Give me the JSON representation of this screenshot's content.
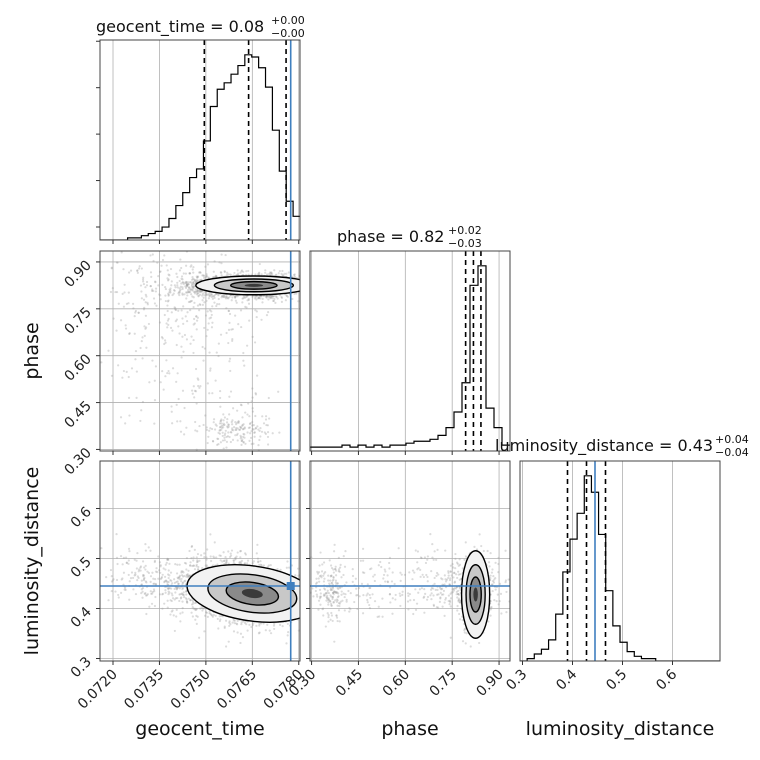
{
  "chart_data": {
    "type": "corner",
    "parameters": [
      "geocent_time",
      "phase",
      "luminosity_distance"
    ],
    "colors": {
      "truth": "#3f7fbf",
      "histogram": "#000000",
      "quantile": "#000000",
      "scatter": "#9a9a9a",
      "grid": "#b0b0b0"
    },
    "grid": true,
    "ranges": {
      "geocent_time": [
        0.07158,
        0.07804
      ],
      "phase": [
        0.295,
        0.935
      ],
      "luminosity_distance": [
        0.295,
        0.695
      ]
    },
    "ticks": {
      "geocent_time": [
        {
          "v": 0.072,
          "t": "0.0720"
        },
        {
          "v": 0.0735,
          "t": "0.0735"
        },
        {
          "v": 0.075,
          "t": "0.0750"
        },
        {
          "v": 0.0765,
          "t": "0.0765"
        },
        {
          "v": 0.078,
          "t": "0.0780"
        }
      ],
      "phase": [
        {
          "v": 0.3,
          "t": "0.30"
        },
        {
          "v": 0.45,
          "t": "0.45"
        },
        {
          "v": 0.6,
          "t": "0.60"
        },
        {
          "v": 0.75,
          "t": "0.75"
        },
        {
          "v": 0.9,
          "t": "0.90"
        }
      ],
      "luminosity_distance": [
        {
          "v": 0.3,
          "t": "0.3"
        },
        {
          "v": 0.4,
          "t": "0.4"
        },
        {
          "v": 0.5,
          "t": "0.5"
        },
        {
          "v": 0.6,
          "t": "0.6"
        }
      ]
    },
    "truths": {
      "geocent_time": 0.07774,
      "phase": null,
      "luminosity_distance": 0.445
    },
    "titles": {
      "geocent_time": {
        "text": "geocent_time = 0.08",
        "upper": "+0.00",
        "lower": "−0.00"
      },
      "phase": {
        "text": "phase = 0.82",
        "upper": "+0.02",
        "lower": "−0.03"
      },
      "luminosity_distance": {
        "text": "luminosity_distance = 0.43",
        "upper": "+0.04",
        "lower": "−0.04"
      }
    },
    "quantiles": {
      "geocent_time": [
        0.07495,
        0.07638,
        0.07759
      ],
      "phase": [
        0.793,
        0.818,
        0.842
      ],
      "luminosity_distance": [
        0.39,
        0.428,
        0.466
      ]
    },
    "histograms": {
      "geocent_time": {
        "counts": [
          0,
          0,
          0,
          0,
          1,
          1,
          2,
          3,
          4,
          6,
          10,
          16,
          22,
          29,
          33,
          46,
          62,
          70,
          73,
          77,
          81,
          86,
          85,
          80,
          71,
          51,
          32,
          18,
          11
        ]
      },
      "phase": {
        "counts": [
          0.02,
          0.02,
          0.02,
          0.02,
          0.03,
          0.02,
          0.03,
          0.02,
          0.03,
          0.02,
          0.03,
          0.03,
          0.04,
          0.05,
          0.05,
          0.06,
          0.08,
          0.12,
          0.2,
          0.35,
          0.85,
          0.95,
          0.22,
          0.12,
          0.03
        ]
      },
      "luminosity_distance": {
        "counts": [
          0,
          1,
          3,
          5,
          9,
          20,
          38,
          52,
          63,
          79,
          72,
          54,
          30,
          15,
          8,
          4,
          2,
          1,
          1,
          0,
          0,
          0,
          0,
          0,
          0,
          0,
          0,
          0
        ]
      }
    },
    "axis_labels": {
      "geocent_time": "geocent_time",
      "phase": "phase",
      "luminosity_distance": "luminosity_distance"
    }
  }
}
